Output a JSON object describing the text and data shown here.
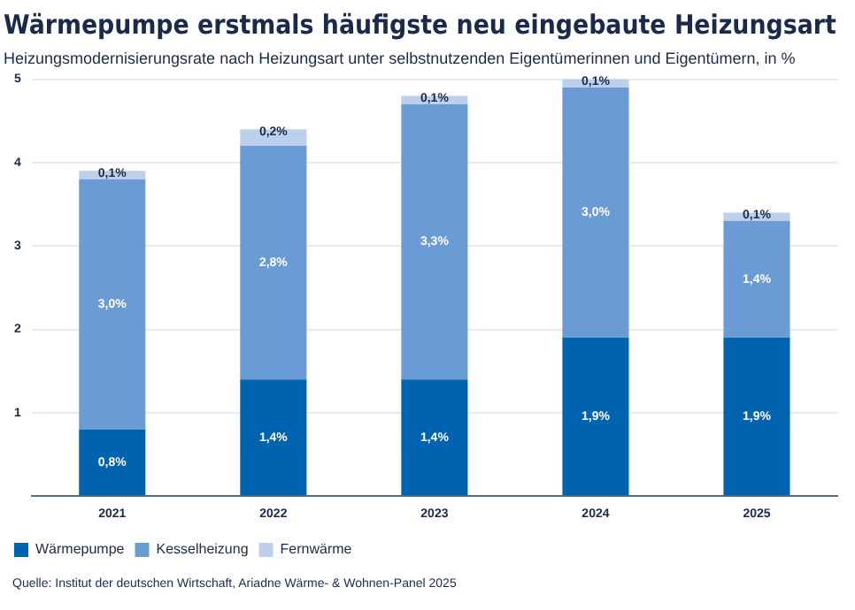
{
  "chart_data": {
    "type": "bar",
    "title": "Wärmepumpe erstmals häufigste neu eingebaute Heizungsart",
    "subtitle": "Heizungsmodernisierungsrate nach Heizungsart unter selbstnutzenden Eigentümerinnen und Eigentümern, in %",
    "categories": [
      "2021",
      "2022",
      "2023",
      "2024",
      "2025"
    ],
    "stacked": true,
    "series": [
      {
        "name": "Wärmepumpe",
        "color": "#0063b0",
        "values": [
          0.8,
          1.4,
          1.4,
          1.9,
          1.9
        ],
        "value_labels": [
          "0,8%",
          "1,4%",
          "1,4%",
          "1,9%",
          "1,9%"
        ]
      },
      {
        "name": "Kesselheizung",
        "color": "#6a9bd4",
        "values": [
          3.0,
          2.8,
          3.3,
          3.0,
          1.4
        ],
        "value_labels": [
          "3,0%",
          "2,8%",
          "3,3%",
          "3,0%",
          "1,4%"
        ]
      },
      {
        "name": "Fernwärme",
        "color": "#bcd0ec",
        "values": [
          0.1,
          0.2,
          0.1,
          0.1,
          0.1
        ],
        "value_labels": [
          "0,1%",
          "0,2%",
          "0,1%",
          "0,1%",
          "0,1%"
        ]
      }
    ],
    "ylim": [
      0,
      5
    ],
    "yticks": [
      {
        "value": 0,
        "label": null
      },
      1,
      2,
      3,
      4,
      5
    ],
    "grid": "y",
    "legend": "bottom left",
    "annotations": [
      "Quelle: Institut der deutschen Wirtschaft, Ariadne Wärme- & Wohnen-Panel 2025"
    ]
  }
}
